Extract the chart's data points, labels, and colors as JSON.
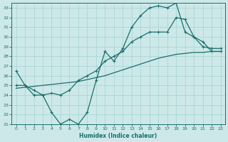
{
  "xlabel": "Humidex (Indice chaleur)",
  "xlim": [
    -0.5,
    23.5
  ],
  "ylim": [
    21,
    33.5
  ],
  "xticks": [
    0,
    1,
    2,
    3,
    4,
    5,
    6,
    7,
    8,
    9,
    10,
    11,
    12,
    13,
    14,
    15,
    16,
    17,
    18,
    19,
    20,
    21,
    22,
    23
  ],
  "yticks": [
    21,
    22,
    23,
    24,
    25,
    26,
    27,
    28,
    29,
    30,
    31,
    32,
    33
  ],
  "bg_color": "#cde8e8",
  "line_color": "#1a6e6e",
  "grid_color": "#b0d8d8",
  "line1_x": [
    0,
    1,
    2,
    3,
    4,
    5,
    6,
    7,
    8,
    9,
    10,
    11,
    12,
    13,
    14,
    15,
    16,
    17,
    18,
    19,
    20,
    21,
    22,
    23
  ],
  "line1_y": [
    26.5,
    25.0,
    24.0,
    24.0,
    22.2,
    21.0,
    21.5,
    21.0,
    22.2,
    25.5,
    28.5,
    27.5,
    28.8,
    31.0,
    32.2,
    33.0,
    33.2,
    33.0,
    33.5,
    30.5,
    30.0,
    29.5,
    28.5,
    28.5
  ],
  "line2_x": [
    0,
    1,
    2,
    3,
    4,
    5,
    6,
    7,
    8,
    9,
    10,
    11,
    12,
    13,
    14,
    15,
    16,
    17,
    18,
    19,
    20,
    21,
    22,
    23
  ],
  "line2_y": [
    24.7,
    24.8,
    24.9,
    25.0,
    25.1,
    25.2,
    25.3,
    25.4,
    25.6,
    25.8,
    26.0,
    26.3,
    26.6,
    26.9,
    27.2,
    27.5,
    27.8,
    28.0,
    28.2,
    28.3,
    28.4,
    28.4,
    28.5,
    28.5
  ],
  "line3_x": [
    0,
    1,
    2,
    3,
    4,
    5,
    6,
    7,
    8,
    9,
    10,
    11,
    12,
    13,
    14,
    15,
    16,
    17,
    18,
    19,
    20,
    21,
    22,
    23
  ],
  "line3_y": [
    25.0,
    25.0,
    24.5,
    24.0,
    24.2,
    24.0,
    24.5,
    25.5,
    26.0,
    26.5,
    27.5,
    28.0,
    28.5,
    29.5,
    30.0,
    30.5,
    30.5,
    30.5,
    32.0,
    31.8,
    30.0,
    29.0,
    28.8,
    28.8
  ]
}
